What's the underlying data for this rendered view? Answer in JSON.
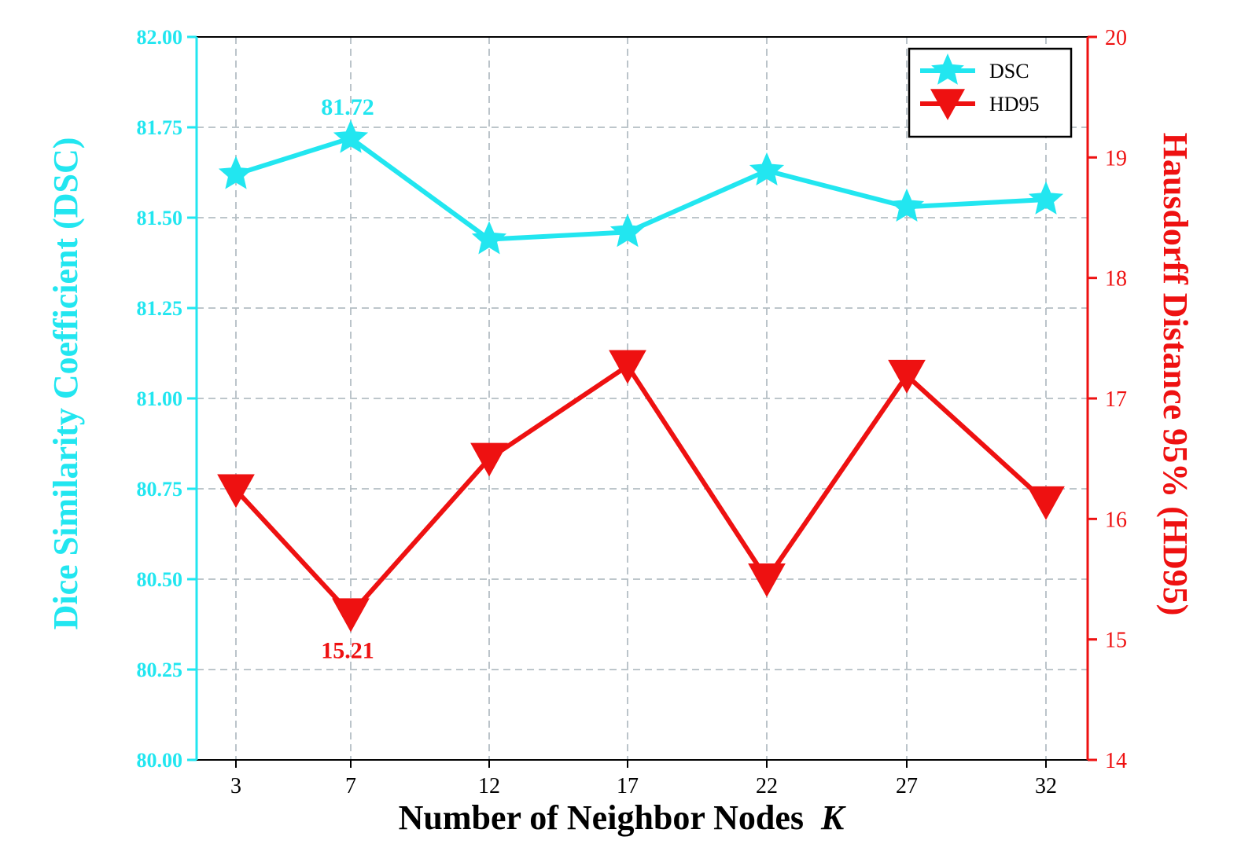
{
  "chart_data": {
    "type": "line",
    "categories": [
      "3",
      "7",
      "12",
      "17",
      "22",
      "27",
      "32"
    ],
    "x": [
      3,
      7,
      12,
      17,
      22,
      27,
      32
    ],
    "xlabel": "Number of Neighbor Nodes",
    "xlabel_var": "K",
    "ylabel_left": "Dice Similarity Coefficient (DSC)",
    "ylabel_right": "Hausdorff  Distance 95% (HD95)",
    "ylim_left": [
      80.0,
      82.0
    ],
    "ylim_right": [
      14,
      20
    ],
    "yticks_left": [
      "80.00",
      "80.25",
      "80.50",
      "80.75",
      "81.00",
      "81.25",
      "81.50",
      "81.75",
      "82.00"
    ],
    "yticks_right": [
      "14",
      "15",
      "16",
      "17",
      "18",
      "19",
      "20"
    ],
    "grid": true,
    "legend_position": "top-right",
    "series": [
      {
        "name": "DSC",
        "axis": "left",
        "color": "#22e6f0",
        "marker": "star",
        "values": [
          81.62,
          81.72,
          81.44,
          81.46,
          81.63,
          81.53,
          81.55
        ]
      },
      {
        "name": "HD95",
        "axis": "right",
        "color": "#ee1111",
        "marker": "triangle-down",
        "values": [
          16.24,
          15.21,
          16.5,
          17.27,
          15.5,
          17.19,
          16.14
        ]
      }
    ],
    "annotations": [
      {
        "series": "DSC",
        "index": 1,
        "text": "81.72"
      },
      {
        "series": "HD95",
        "index": 1,
        "text": "15.21"
      }
    ]
  }
}
